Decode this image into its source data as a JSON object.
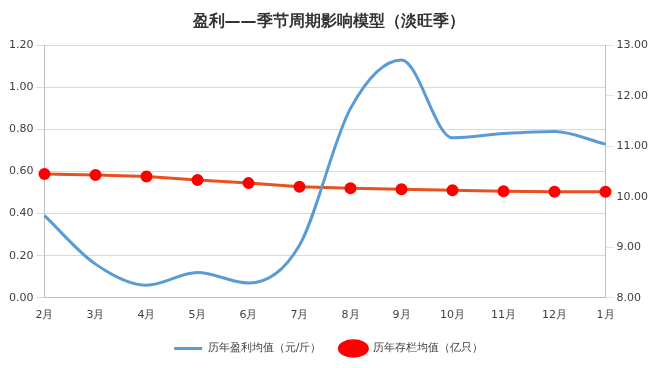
{
  "chart_data": {
    "type": "line",
    "title": "盈利——季节周期影响模型（淡旺季）",
    "categories": [
      "2月",
      "3月",
      "4月",
      "5月",
      "6月",
      "7月",
      "8月",
      "9月",
      "10月",
      "11月",
      "12月",
      "1月"
    ],
    "series": [
      {
        "name": "历年盈利均值（元/斤）",
        "color": "#5b9bd5",
        "marker": "none",
        "line_style": "solid",
        "values": [
          0.39,
          0.16,
          0.06,
          0.12,
          0.07,
          0.25,
          0.9,
          1.13,
          0.76,
          0.78,
          0.79,
          0.73
        ]
      },
      {
        "name": "历年存栏均值（亿只）",
        "color": "#e8501e",
        "marker": "circle",
        "line_style": "solid",
        "axis": "y2",
        "values": [
          10.45,
          10.43,
          10.4,
          10.33,
          10.27,
          10.2,
          10.17,
          10.15,
          10.13,
          10.11,
          10.1,
          10.1
        ]
      }
    ],
    "ylim": [
      0,
      1.2
    ],
    "yticks": [
      {
        "value": 0,
        "label": "0.00"
      },
      {
        "value": 0.2,
        "label": "0.20"
      },
      {
        "value": 0.4,
        "label": "0.40"
      },
      {
        "value": 0.6,
        "label": "0.60"
      },
      {
        "value": 0.8,
        "label": "0.80"
      },
      {
        "value": 1.0,
        "label": "1.00"
      },
      {
        "value": 1.2,
        "label": "1.20"
      }
    ],
    "y2lim": [
      8,
      13
    ],
    "y2ticks": [
      {
        "value": 8,
        "label": "8.00"
      },
      {
        "value": 9,
        "label": "9.00"
      },
      {
        "value": 10,
        "label": "10.00"
      },
      {
        "value": 11,
        "label": "11.00"
      },
      {
        "value": 12,
        "label": "12.00"
      },
      {
        "value": 13,
        "label": "13.00"
      }
    ],
    "grid": true,
    "legend": "bottom"
  }
}
